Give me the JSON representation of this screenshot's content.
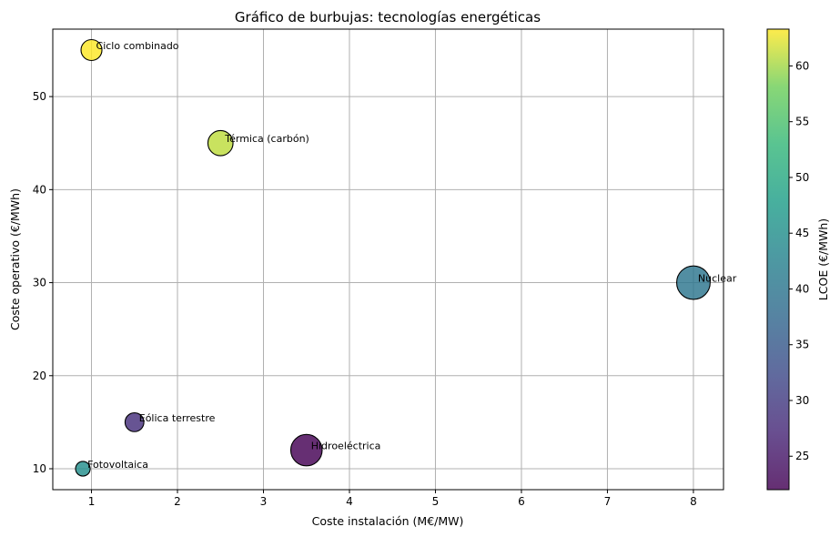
{
  "chart_data": {
    "type": "scatter",
    "title": "Gráfico de burbujas: tecnologías energéticas",
    "xlabel": "Coste instalación (M€/MW)",
    "ylabel": "Coste operativo (€/MWh)",
    "xlim": [
      0.55,
      8.35
    ],
    "ylim": [
      7.75,
      57.25
    ],
    "xticks": [
      1,
      2,
      3,
      4,
      5,
      6,
      7,
      8
    ],
    "yticks": [
      10,
      20,
      30,
      40,
      50
    ],
    "grid": true,
    "colorbar": {
      "label": "LCOE (€/MWh)",
      "range": [
        22,
        63.3
      ],
      "ticks": [
        25,
        30,
        35,
        40,
        45,
        50,
        55,
        60
      ],
      "colormap": "viridis"
    },
    "points": [
      {
        "label": "Ciclo combinado",
        "x": 1.0,
        "y": 55,
        "lcoe": 63.3,
        "size": 1.0
      },
      {
        "label": "Térmica (carbón)",
        "x": 2.5,
        "y": 45,
        "lcoe": 61,
        "size": 1.2
      },
      {
        "label": "Nuclear",
        "x": 8.0,
        "y": 30,
        "lcoe": 40,
        "size": 1.6
      },
      {
        "label": "Eólica terrestre",
        "x": 1.5,
        "y": 15,
        "lcoe": 28,
        "size": 0.9
      },
      {
        "label": "Hidroeléctrica",
        "x": 3.5,
        "y": 12,
        "lcoe": 22,
        "size": 1.5
      },
      {
        "label": "Fotovoltaica",
        "x": 0.9,
        "y": 10,
        "lcoe": 45,
        "size": 0.7
      }
    ]
  }
}
